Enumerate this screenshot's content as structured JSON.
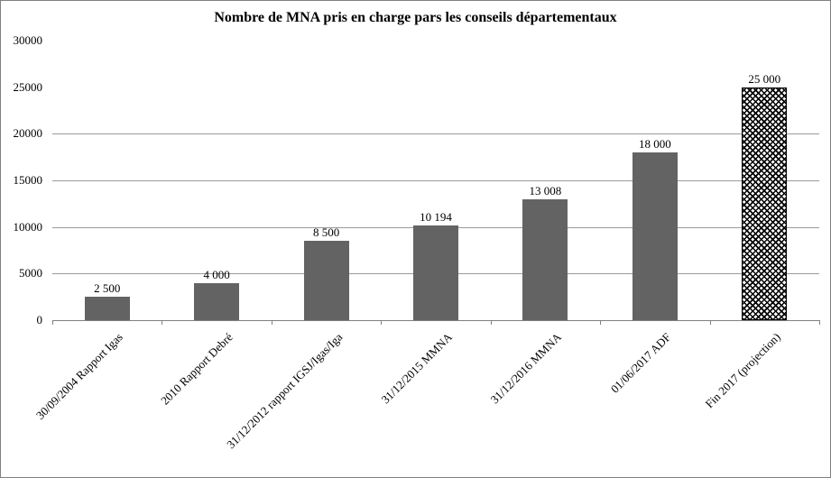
{
  "title": "Nombre de MNA pris en charge pars les conseils départementaux",
  "colors": {
    "bar_fill": "#636363",
    "pattern_bar_foreground": "#000000",
    "pattern_bar_background": "#ffffff",
    "gridline": "#9a9a9a",
    "axis": "#808080",
    "text": "#000000",
    "frame_border": "#808080"
  },
  "chart_data": {
    "type": "bar",
    "title": "Nombre de MNA pris en charge pars les conseils départementaux",
    "categories": [
      "30/09/2004 Rapport Igas",
      "2010 Rapport Debré",
      "31/12/2012 rapport IGSJ/Igas/Iga",
      "31/12/2015 MMNA",
      "31/12/2016 MMNA",
      "01/06/2017 ADF",
      "Fin 2017 (projection)"
    ],
    "values": [
      2500,
      4000,
      8500,
      10194,
      13008,
      18000,
      25000
    ],
    "value_labels": [
      "2 500",
      "4 000",
      "8 500",
      "10 194",
      "13 008",
      "18 000",
      "25 000"
    ],
    "pattern_bar_index": 6,
    "xlabel": "",
    "ylabel": "",
    "ylim": [
      0,
      30000
    ],
    "ytick_values": [
      0,
      5000,
      10000,
      15000,
      20000,
      25000,
      30000
    ],
    "ytick_labels": [
      "0",
      "5000",
      "10000",
      "15000",
      "20000",
      "25000",
      "30000"
    ],
    "gridline_values": [
      5000,
      10000,
      15000,
      20000
    ],
    "grid": "horizontal-only",
    "legend_position": "none",
    "x_tick_marks": "between-categories",
    "x_label_rotation_deg": 45
  }
}
